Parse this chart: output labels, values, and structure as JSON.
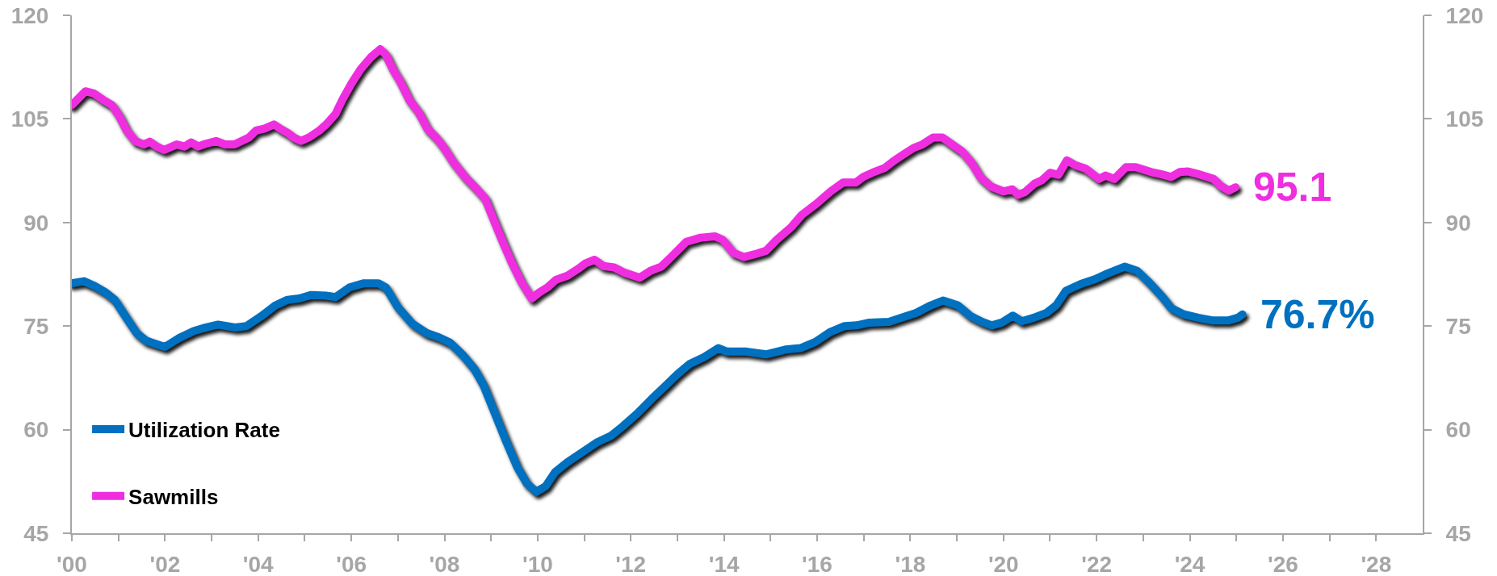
{
  "chart_data": {
    "type": "line",
    "xlim": [
      2000,
      2029
    ],
    "xticks": [
      {
        "value": 2000,
        "label": "'00"
      },
      {
        "value": 2001,
        "label": null
      },
      {
        "value": 2002,
        "label": "'02"
      },
      {
        "value": 2003,
        "label": null
      },
      {
        "value": 2004,
        "label": "'04"
      },
      {
        "value": 2005,
        "label": null
      },
      {
        "value": 2006,
        "label": "'06"
      },
      {
        "value": 2007,
        "label": null
      },
      {
        "value": 2008,
        "label": "'08"
      },
      {
        "value": 2009,
        "label": null
      },
      {
        "value": 2010,
        "label": "'10"
      },
      {
        "value": 2011,
        "label": null
      },
      {
        "value": 2012,
        "label": "'12"
      },
      {
        "value": 2013,
        "label": null
      },
      {
        "value": 2014,
        "label": "'14"
      },
      {
        "value": 2015,
        "label": null
      },
      {
        "value": 2016,
        "label": "'16"
      },
      {
        "value": 2017,
        "label": null
      },
      {
        "value": 2018,
        "label": "'18"
      },
      {
        "value": 2019,
        "label": null
      },
      {
        "value": 2020,
        "label": "'20"
      },
      {
        "value": 2021,
        "label": null
      },
      {
        "value": 2022,
        "label": "'22"
      },
      {
        "value": 2023,
        "label": null
      },
      {
        "value": 2024,
        "label": "'24"
      },
      {
        "value": 2025,
        "label": null
      },
      {
        "value": 2026,
        "label": "'26"
      },
      {
        "value": 2027,
        "label": null
      },
      {
        "value": 2028,
        "label": "'28"
      }
    ],
    "ylim": [
      45,
      120
    ],
    "yticks": [
      45,
      60,
      75,
      90,
      105,
      120
    ],
    "y2lim": [
      45,
      120
    ],
    "y2ticks": [
      45,
      60,
      75,
      90,
      105,
      120
    ],
    "grid": false,
    "legend": "bottom left",
    "marker": "none",
    "line_style": "solid",
    "series": [
      {
        "name": "Utilization Rate",
        "color": "#0070c0",
        "x": [
          2000.0,
          2000.26,
          2000.46,
          2000.72,
          2000.92,
          2001.18,
          2001.39,
          2001.59,
          2001.9,
          2002.0,
          2002.31,
          2002.62,
          2002.88,
          2003.14,
          2003.5,
          2003.75,
          2004.06,
          2004.37,
          2004.63,
          2004.88,
          2005.14,
          2005.45,
          2005.66,
          2005.96,
          2006.27,
          2006.58,
          2006.74,
          2006.99,
          2007.3,
          2007.61,
          2007.87,
          2008.12,
          2008.38,
          2008.64,
          2008.84,
          2009.05,
          2009.3,
          2009.56,
          2009.77,
          2009.97,
          2010.17,
          2010.38,
          2010.64,
          2010.95,
          2011.26,
          2011.57,
          2011.83,
          2012.13,
          2012.44,
          2012.75,
          2013.01,
          2013.26,
          2013.57,
          2013.88,
          2014.06,
          2014.48,
          2014.9,
          2015.32,
          2015.64,
          2015.96,
          2016.27,
          2016.59,
          2016.85,
          2017.12,
          2017.54,
          2017.8,
          2018.12,
          2018.44,
          2018.7,
          2019.02,
          2019.28,
          2019.54,
          2019.75,
          2019.96,
          2020.2,
          2020.39,
          2020.65,
          2020.92,
          2021.13,
          2021.34,
          2021.66,
          2021.97,
          2022.23,
          2022.6,
          2022.87,
          2023.13,
          2023.39,
          2023.6,
          2023.87,
          2024.18,
          2024.5,
          2024.82,
          2025.03,
          2025.13
        ],
        "values": [
          81.2,
          81.5,
          80.9,
          79.9,
          78.8,
          76.1,
          74.0,
          72.9,
          72.2,
          72.0,
          73.3,
          74.3,
          74.8,
          75.2,
          74.8,
          75.0,
          76.4,
          78.0,
          78.8,
          79.0,
          79.5,
          79.4,
          79.2,
          80.6,
          81.2,
          81.2,
          80.6,
          77.8,
          75.4,
          74.0,
          73.4,
          72.6,
          70.9,
          68.8,
          66.4,
          62.9,
          58.7,
          54.6,
          52.2,
          51.0,
          51.8,
          53.9,
          55.3,
          56.7,
          58.1,
          59.1,
          60.5,
          62.3,
          64.4,
          66.4,
          68.1,
          69.5,
          70.5,
          71.8,
          71.3,
          71.3,
          70.9,
          71.6,
          71.8,
          72.7,
          74.1,
          75.0,
          75.1,
          75.5,
          75.6,
          76.2,
          76.9,
          78.0,
          78.7,
          78.0,
          76.5,
          75.6,
          75.1,
          75.5,
          76.5,
          75.7,
          76.2,
          76.9,
          78.0,
          80.1,
          81.1,
          81.8,
          82.6,
          83.6,
          83.0,
          81.3,
          79.4,
          77.6,
          76.7,
          76.2,
          75.8,
          75.8,
          76.2,
          76.7
        ],
        "value_labels": [
          null,
          null,
          null,
          null,
          null,
          null,
          null,
          null,
          null,
          null,
          null,
          null,
          null,
          null,
          null,
          null,
          null,
          null,
          null,
          null,
          null,
          null,
          null,
          null,
          null,
          null,
          null,
          null,
          null,
          null,
          null,
          null,
          null,
          null,
          null,
          null,
          null,
          null,
          null,
          null,
          null,
          null,
          null,
          null,
          null,
          null,
          null,
          null,
          null,
          null,
          null,
          null,
          null,
          null,
          null,
          null,
          null,
          null,
          null,
          null,
          null,
          null,
          null,
          null,
          null,
          null,
          null,
          null,
          null,
          null,
          null,
          null,
          null,
          null,
          null,
          null,
          null,
          null,
          null,
          null,
          null,
          null,
          null,
          null,
          null,
          null,
          null,
          null,
          null,
          null,
          null,
          null,
          null,
          "76.7%"
        ]
      },
      {
        "name": "Sawmills",
        "color": "#ef2ee0",
        "axis": "y2",
        "x": [
          2000.0,
          2000.29,
          2000.47,
          2000.66,
          2000.86,
          2001.01,
          2001.17,
          2001.36,
          2001.55,
          2001.67,
          2001.82,
          2001.98,
          2002.25,
          2002.42,
          2002.56,
          2002.71,
          2002.87,
          2003.1,
          2003.29,
          2003.49,
          2003.8,
          2003.95,
          2004.14,
          2004.34,
          2004.49,
          2004.65,
          2004.76,
          2004.92,
          2005.11,
          2005.31,
          2005.46,
          2005.66,
          2005.81,
          2006.0,
          2006.2,
          2006.43,
          2006.62,
          2006.74,
          2006.89,
          2007.05,
          2007.24,
          2007.44,
          2007.63,
          2007.82,
          2007.97,
          2008.17,
          2008.44,
          2008.67,
          2008.87,
          2009.06,
          2009.25,
          2009.45,
          2009.64,
          2009.87,
          2010.04,
          2010.21,
          2010.39,
          2010.64,
          2010.87,
          2011.03,
          2011.22,
          2011.41,
          2011.64,
          2011.84,
          2012.19,
          2012.42,
          2012.65,
          2012.88,
          2013.19,
          2013.5,
          2013.81,
          2013.97,
          2014.2,
          2014.43,
          2014.66,
          2014.9,
          2015.13,
          2015.44,
          2015.67,
          2015.98,
          2016.29,
          2016.56,
          2016.83,
          2016.99,
          2017.18,
          2017.45,
          2017.64,
          2017.84,
          2018.07,
          2018.26,
          2018.49,
          2018.69,
          2018.96,
          2019.11,
          2019.31,
          2019.5,
          2019.73,
          2020.0,
          2020.19,
          2020.31,
          2020.46,
          2020.66,
          2020.82,
          2021.0,
          2021.18,
          2021.36,
          2021.54,
          2021.76,
          2022.05,
          2022.19,
          2022.38,
          2022.63,
          2022.84,
          2023.17,
          2023.38,
          2023.6,
          2023.78,
          2023.96,
          2024.18,
          2024.37,
          2024.51,
          2024.66,
          2024.84,
          2024.98
        ],
        "values": [
          107.0,
          109.0,
          108.7,
          107.8,
          107.0,
          105.5,
          103.4,
          101.8,
          101.3,
          101.7,
          101.0,
          100.5,
          101.3,
          101.0,
          101.6,
          101.0,
          101.4,
          101.8,
          101.3,
          101.3,
          102.3,
          103.3,
          103.6,
          104.2,
          103.5,
          102.9,
          102.3,
          101.8,
          102.4,
          103.3,
          104.2,
          105.7,
          107.8,
          110.1,
          112.2,
          114.0,
          115.1,
          114.3,
          112.2,
          110.4,
          107.8,
          106.0,
          103.6,
          102.3,
          101.0,
          98.9,
          96.6,
          95.0,
          93.5,
          90.3,
          87.2,
          84.1,
          81.5,
          79.0,
          79.9,
          80.6,
          81.7,
          82.3,
          83.3,
          84.1,
          84.6,
          83.7,
          83.5,
          82.8,
          82.0,
          83.0,
          83.6,
          85.1,
          87.2,
          87.8,
          88.0,
          87.5,
          85.6,
          85.0,
          85.4,
          85.9,
          87.5,
          89.3,
          91.1,
          92.7,
          94.5,
          95.8,
          95.8,
          96.6,
          97.2,
          97.9,
          98.9,
          99.8,
          100.8,
          101.3,
          102.3,
          102.3,
          101.0,
          100.3,
          98.7,
          96.6,
          95.2,
          94.5,
          94.8,
          94.0,
          94.4,
          95.6,
          96.1,
          97.2,
          96.9,
          99.0,
          98.3,
          97.8,
          96.3,
          96.8,
          96.3,
          98.0,
          98.0,
          97.3,
          97.0,
          96.6,
          97.3,
          97.4,
          97.0,
          96.6,
          96.3,
          95.3,
          94.6,
          95.1
        ],
        "value_labels": [
          null,
          null,
          null,
          null,
          null,
          null,
          null,
          null,
          null,
          null,
          null,
          null,
          null,
          null,
          null,
          null,
          null,
          null,
          null,
          null,
          null,
          null,
          null,
          null,
          null,
          null,
          null,
          null,
          null,
          null,
          null,
          null,
          null,
          null,
          null,
          null,
          null,
          null,
          null,
          null,
          null,
          null,
          null,
          null,
          null,
          null,
          null,
          null,
          null,
          null,
          null,
          null,
          null,
          null,
          null,
          null,
          null,
          null,
          null,
          null,
          null,
          null,
          null,
          null,
          null,
          null,
          null,
          null,
          null,
          null,
          null,
          null,
          null,
          null,
          null,
          null,
          null,
          null,
          null,
          null,
          null,
          null,
          null,
          null,
          null,
          null,
          null,
          null,
          null,
          null,
          null,
          null,
          null,
          null,
          null,
          null,
          null,
          null,
          null,
          null,
          null,
          null,
          null,
          null,
          null,
          null,
          null,
          null,
          null,
          null,
          null,
          null,
          null,
          null,
          null,
          null,
          null,
          null,
          null,
          null,
          null,
          null,
          null,
          "95.1"
        ]
      }
    ]
  }
}
